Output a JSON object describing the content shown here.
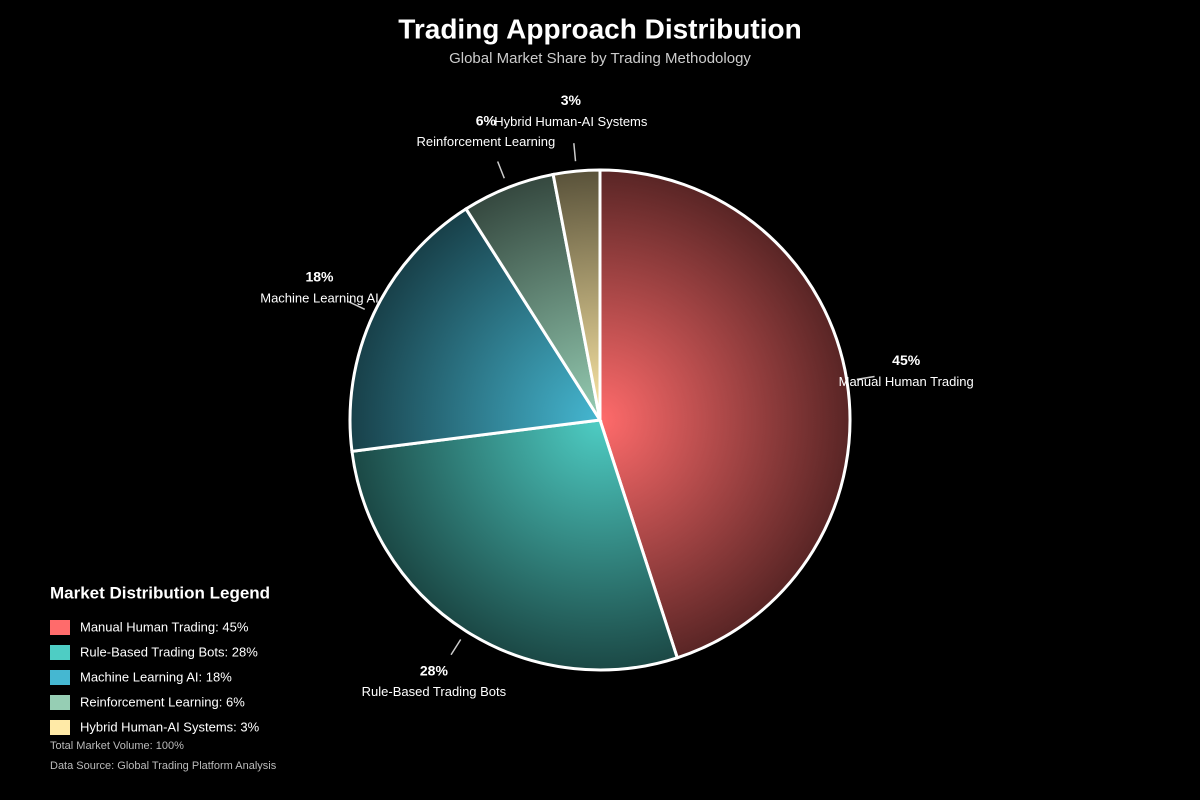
{
  "chart_data": {
    "type": "pie",
    "title": "Trading Approach Distribution",
    "subtitle": "Global Market Share by Trading Methodology",
    "categories": [
      "Manual Human Trading",
      "Rule-Based Trading Bots",
      "Machine Learning AI",
      "Reinforcement Learning",
      "Hybrid Human-AI Systems"
    ],
    "values": [
      45,
      28,
      18,
      6,
      3
    ],
    "value_labels": [
      "45%",
      "28%",
      "18%",
      "6%",
      "3%"
    ],
    "colors": [
      "#ff6b6b",
      "#4ecdc4",
      "#45b7d1",
      "#96ceb4",
      "#ffeaa7"
    ],
    "legend": {
      "title": "Market Distribution Legend",
      "labels": [
        "Manual Human Trading: 45%",
        "Rule-Based Trading Bots: 28%",
        "Machine Learning AI: 18%",
        "Reinforcement Learning: 6%",
        "Hybrid Human-AI Systems: 3%"
      ]
    },
    "notes": [
      "Total Market Volume: 100%",
      "Data Source: Global Trading Platform Analysis"
    ]
  }
}
